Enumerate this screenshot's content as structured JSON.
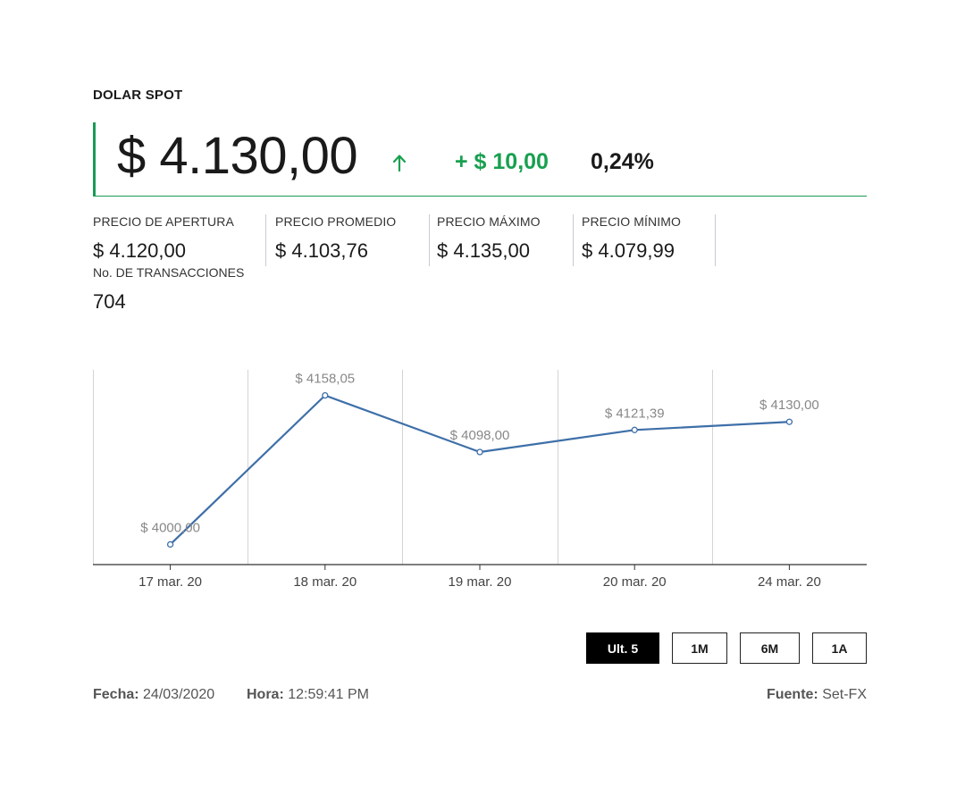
{
  "title": "DOLAR SPOT",
  "price": "$ 4.130,00",
  "change_abs": "+ $ 10,00",
  "change_pct": "0,24%",
  "colors": {
    "accent_green": "#1a9a55",
    "change_green": "#18a04f",
    "line": "#3e6fa8",
    "button_active_bg": "#000000"
  },
  "stats": [
    {
      "label": "PRECIO DE APERTURA",
      "value": "$ 4.120,00"
    },
    {
      "label": "PRECIO PROMEDIO",
      "value": "$ 4.103,76"
    },
    {
      "label": "PRECIO MÁXIMO",
      "value": "$ 4.135,00"
    },
    {
      "label": "PRECIO MÍNIMO",
      "value": "$ 4.079,99"
    }
  ],
  "transactions": {
    "label": "No. DE TRANSACCIONES",
    "value": "704"
  },
  "chart_data": {
    "type": "line",
    "categories": [
      "17 mar. 20",
      "18 mar. 20",
      "19 mar. 20",
      "20 mar. 20",
      "24 mar. 20"
    ],
    "values": [
      4000.0,
      4158.05,
      4098.0,
      4121.39,
      4130.0
    ],
    "data_labels": [
      "$ 4000,00",
      "$ 4158,05",
      "$ 4098,00",
      "$ 4121,39",
      "$ 4130,00"
    ],
    "grid": "vertical",
    "legend": "none",
    "ylim": [
      3990,
      4170
    ]
  },
  "range_buttons": [
    {
      "label": "Ult. 5",
      "active": true
    },
    {
      "label": "1M",
      "active": false
    },
    {
      "label": "6M",
      "active": false
    },
    {
      "label": "1A",
      "active": false
    }
  ],
  "footer": {
    "date_label": "Fecha:",
    "date_value": "24/03/2020",
    "time_label": "Hora:",
    "time_value": "12:59:41 PM",
    "source_label": "Fuente:",
    "source_value": "Set-FX"
  }
}
